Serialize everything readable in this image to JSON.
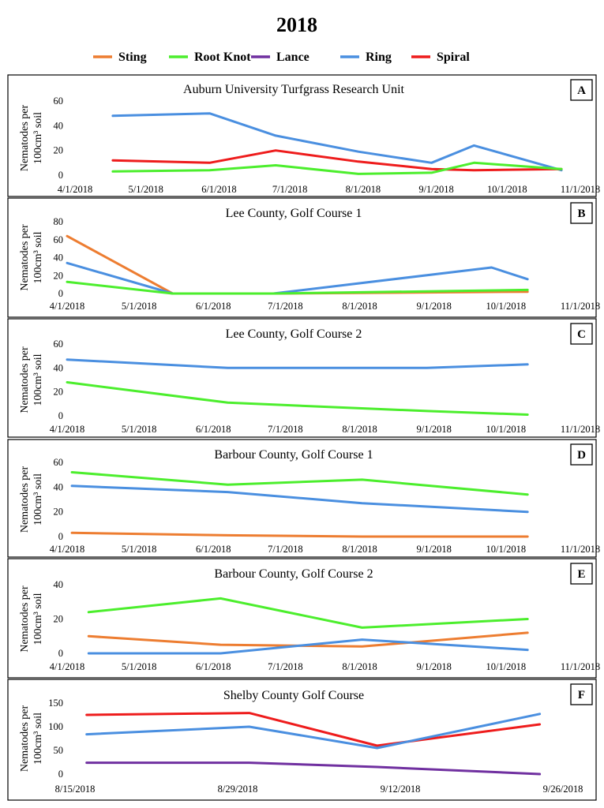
{
  "title": "2018",
  "legend": [
    {
      "name": "Sting",
      "color": "#ED7D31"
    },
    {
      "name": "Root Knot",
      "color": "#4CEE2D"
    },
    {
      "name": "Lance",
      "color": "#7030A0"
    },
    {
      "name": "Ring",
      "color": "#4A8FE0"
    },
    {
      "name": "Spiral",
      "color": "#EE1C1C"
    }
  ],
  "ylabel_line1": "Nematodes per",
  "ylabel_line2": "100cm³ soil",
  "chart_data": [
    {
      "type": "line",
      "letter": "A",
      "title": "Auburn University Turfgrass Research Unit",
      "x_domain": [
        0,
        214
      ],
      "x_ticks": [
        {
          "label": "4/1/2018",
          "v": 0
        },
        {
          "label": "5/1/2018",
          "v": 30
        },
        {
          "label": "6/1/2018",
          "v": 61
        },
        {
          "label": "7/1/2018",
          "v": 91
        },
        {
          "label": "8/1/2018",
          "v": 122
        },
        {
          "label": "9/1/2018",
          "v": 153
        },
        {
          "label": "10/1/2018",
          "v": 183
        },
        {
          "label": "11/1/2018",
          "v": 214
        }
      ],
      "ylim": [
        0,
        60
      ],
      "y_ticks": [
        0,
        20,
        40,
        60
      ],
      "series": [
        {
          "name": "Ring",
          "color": "#4A8FE0",
          "x": [
            16,
            57,
            85,
            120,
            151,
            169,
            206
          ],
          "y": [
            48,
            50,
            32,
            19,
            10,
            24,
            4
          ]
        },
        {
          "name": "Spiral",
          "color": "#EE1C1C",
          "x": [
            16,
            57,
            85,
            120,
            151,
            169,
            206
          ],
          "y": [
            12,
            10,
            20,
            11,
            5,
            4,
            5
          ]
        },
        {
          "name": "Root Knot",
          "color": "#4CEE2D",
          "x": [
            16,
            57,
            85,
            120,
            151,
            169,
            206
          ],
          "y": [
            3,
            4,
            8,
            1,
            2,
            10,
            5
          ]
        }
      ]
    },
    {
      "type": "line",
      "letter": "B",
      "title": "Lee County, Golf Course 1",
      "x_domain": [
        0,
        214
      ],
      "x_ticks": [
        {
          "label": "4/1/2018",
          "v": 0
        },
        {
          "label": "5/1/2018",
          "v": 30
        },
        {
          "label": "6/1/2018",
          "v": 61
        },
        {
          "label": "7/1/2018",
          "v": 91
        },
        {
          "label": "8/1/2018",
          "v": 122
        },
        {
          "label": "9/1/2018",
          "v": 153
        },
        {
          "label": "10/1/2018",
          "v": 183
        },
        {
          "label": "11/1/2018",
          "v": 214
        }
      ],
      "ylim": [
        0,
        80
      ],
      "y_ticks": [
        0,
        20,
        40,
        60,
        80
      ],
      "series": [
        {
          "name": "Sting",
          "color": "#ED7D31",
          "x": [
            0,
            44,
            86,
            192
          ],
          "y": [
            64,
            0,
            0,
            2
          ]
        },
        {
          "name": "Ring",
          "color": "#4A8FE0",
          "x": [
            0,
            44,
            86,
            177,
            192
          ],
          "y": [
            34,
            0,
            0,
            29,
            16
          ]
        },
        {
          "name": "Root Knot",
          "color": "#4CEE2D",
          "x": [
            0,
            44,
            86,
            192
          ],
          "y": [
            13,
            0,
            0,
            4
          ]
        }
      ]
    },
    {
      "type": "line",
      "letter": "C",
      "title": "Lee County, Golf Course 2",
      "x_domain": [
        0,
        214
      ],
      "x_ticks": [
        {
          "label": "4/1/2018",
          "v": 0
        },
        {
          "label": "5/1/2018",
          "v": 30
        },
        {
          "label": "6/1/2018",
          "v": 61
        },
        {
          "label": "7/1/2018",
          "v": 91
        },
        {
          "label": "8/1/2018",
          "v": 122
        },
        {
          "label": "9/1/2018",
          "v": 153
        },
        {
          "label": "10/1/2018",
          "v": 183
        },
        {
          "label": "11/1/2018",
          "v": 214
        }
      ],
      "ylim": [
        0,
        60
      ],
      "y_ticks": [
        0,
        20,
        40,
        60
      ],
      "series": [
        {
          "name": "Ring",
          "color": "#4A8FE0",
          "x": [
            0,
            67,
            150,
            192
          ],
          "y": [
            47,
            40,
            40,
            43
          ]
        },
        {
          "name": "Root Knot",
          "color": "#4CEE2D",
          "x": [
            0,
            67,
            150,
            192
          ],
          "y": [
            28,
            11,
            4,
            1
          ]
        }
      ]
    },
    {
      "type": "line",
      "letter": "D",
      "title": "Barbour County, Golf Course 1",
      "x_domain": [
        0,
        214
      ],
      "x_ticks": [
        {
          "label": "4/1/2018",
          "v": 0
        },
        {
          "label": "5/1/2018",
          "v": 30
        },
        {
          "label": "6/1/2018",
          "v": 61
        },
        {
          "label": "7/1/2018",
          "v": 91
        },
        {
          "label": "8/1/2018",
          "v": 122
        },
        {
          "label": "9/1/2018",
          "v": 153
        },
        {
          "label": "10/1/2018",
          "v": 183
        },
        {
          "label": "11/1/2018",
          "v": 214
        }
      ],
      "ylim": [
        0,
        60
      ],
      "y_ticks": [
        0,
        20,
        40,
        60
      ],
      "series": [
        {
          "name": "Root Knot",
          "color": "#4CEE2D",
          "x": [
            2,
            67,
            123,
            192
          ],
          "y": [
            52,
            42,
            46,
            34
          ]
        },
        {
          "name": "Ring",
          "color": "#4A8FE0",
          "x": [
            2,
            67,
            123,
            192
          ],
          "y": [
            41,
            36,
            27,
            20
          ]
        },
        {
          "name": "Sting",
          "color": "#ED7D31",
          "x": [
            2,
            67,
            123,
            192
          ],
          "y": [
            3,
            1,
            0,
            0
          ]
        }
      ]
    },
    {
      "type": "line",
      "letter": "E",
      "title": "Barbour County, Golf Course 2",
      "x_domain": [
        0,
        214
      ],
      "x_ticks": [
        {
          "label": "4/1/2018",
          "v": 0
        },
        {
          "label": "5/1/2018",
          "v": 30
        },
        {
          "label": "6/1/2018",
          "v": 61
        },
        {
          "label": "7/1/2018",
          "v": 91
        },
        {
          "label": "8/1/2018",
          "v": 122
        },
        {
          "label": "9/1/2018",
          "v": 153
        },
        {
          "label": "10/1/2018",
          "v": 183
        },
        {
          "label": "11/1/2018",
          "v": 214
        }
      ],
      "ylim": [
        0,
        40
      ],
      "y_ticks": [
        0,
        20,
        40
      ],
      "series": [
        {
          "name": "Root Knot",
          "color": "#4CEE2D",
          "x": [
            9,
            64,
            123,
            192
          ],
          "y": [
            24,
            32,
            15,
            20
          ]
        },
        {
          "name": "Sting",
          "color": "#ED7D31",
          "x": [
            9,
            64,
            123,
            192
          ],
          "y": [
            10,
            5,
            4,
            12
          ]
        },
        {
          "name": "Ring",
          "color": "#4A8FE0",
          "x": [
            9,
            64,
            123,
            192
          ],
          "y": [
            0,
            0,
            8,
            2
          ]
        }
      ]
    },
    {
      "type": "line",
      "letter": "F",
      "title": "Shelby County Golf Course",
      "x_domain": [
        0,
        42
      ],
      "x_ticks": [
        {
          "label": "8/15/2018",
          "v": 0
        },
        {
          "label": "8/29/2018",
          "v": 14
        },
        {
          "label": "9/12/2018",
          "v": 28
        },
        {
          "label": "9/26/2018",
          "v": 42
        }
      ],
      "ylim": [
        0,
        150
      ],
      "y_ticks": [
        0,
        50,
        100,
        150
      ],
      "series": [
        {
          "name": "Spiral",
          "color": "#EE1C1C",
          "x": [
            1,
            15,
            26,
            40
          ],
          "y": [
            125,
            129,
            60,
            105
          ]
        },
        {
          "name": "Ring",
          "color": "#4A8FE0",
          "x": [
            1,
            15,
            26,
            40
          ],
          "y": [
            84,
            100,
            55,
            127
          ]
        },
        {
          "name": "Lance",
          "color": "#7030A0",
          "x": [
            1,
            15,
            26,
            40
          ],
          "y": [
            24,
            24,
            15,
            0
          ]
        }
      ]
    }
  ]
}
